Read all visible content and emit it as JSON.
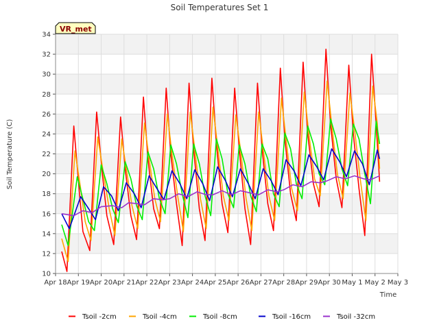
{
  "chart_data": {
    "type": "line",
    "title": "Soil Temperatures Set 1",
    "xlabel": "Time",
    "ylabel": "Soil Temperature (C)",
    "badge": "VR_met",
    "ylim": [
      10,
      34
    ],
    "xlim": [
      0,
      15
    ],
    "yticks": [
      10,
      12,
      14,
      16,
      18,
      20,
      22,
      24,
      26,
      28,
      30,
      32,
      34
    ],
    "xticks": [
      {
        "x": 0,
        "label": "Apr 18"
      },
      {
        "x": 1,
        "label": "Apr 19"
      },
      {
        "x": 2,
        "label": "Apr 20"
      },
      {
        "x": 3,
        "label": "Apr 21"
      },
      {
        "x": 4,
        "label": "Apr 22"
      },
      {
        "x": 5,
        "label": "Apr 23"
      },
      {
        "x": 6,
        "label": "Apr 24"
      },
      {
        "x": 7,
        "label": "Apr 25"
      },
      {
        "x": 8,
        "label": "Apr 26"
      },
      {
        "x": 9,
        "label": "Apr 27"
      },
      {
        "x": 10,
        "label": "Apr 28"
      },
      {
        "x": 11,
        "label": "Apr 29"
      },
      {
        "x": 12,
        "label": "Apr 30"
      },
      {
        "x": 13,
        "label": "May 1"
      },
      {
        "x": 14,
        "label": "May 2"
      },
      {
        "x": 15,
        "label": "May 3"
      }
    ],
    "grid": true,
    "legend_position": "bottom",
    "series": [
      {
        "name": "Tsoil -2cm",
        "color": "#ff0000",
        "points": [
          [
            0.27,
            12.2
          ],
          [
            0.5,
            10.2
          ],
          [
            0.8,
            24.8
          ],
          [
            1.05,
            18.0
          ],
          [
            1.2,
            14.2
          ],
          [
            1.5,
            12.3
          ],
          [
            1.8,
            26.2
          ],
          [
            2.05,
            20.0
          ],
          [
            2.25,
            15.8
          ],
          [
            2.55,
            12.9
          ],
          [
            2.85,
            25.7
          ],
          [
            3.05,
            20.5
          ],
          [
            3.3,
            15.8
          ],
          [
            3.55,
            13.4
          ],
          [
            3.85,
            27.7
          ],
          [
            4.05,
            21.5
          ],
          [
            4.3,
            16.5
          ],
          [
            4.55,
            14.5
          ],
          [
            4.85,
            28.6
          ],
          [
            5.05,
            22.0
          ],
          [
            5.3,
            17.0
          ],
          [
            5.55,
            12.8
          ],
          [
            5.85,
            29.1
          ],
          [
            6.05,
            22.5
          ],
          [
            6.3,
            16.5
          ],
          [
            6.55,
            13.3
          ],
          [
            6.85,
            29.6
          ],
          [
            7.05,
            23.0
          ],
          [
            7.3,
            17.0
          ],
          [
            7.55,
            14.1
          ],
          [
            7.85,
            28.6
          ],
          [
            8.05,
            22.5
          ],
          [
            8.3,
            16.5
          ],
          [
            8.55,
            12.9
          ],
          [
            8.85,
            29.1
          ],
          [
            9.05,
            22.5
          ],
          [
            9.3,
            17.0
          ],
          [
            9.55,
            14.3
          ],
          [
            9.85,
            30.6
          ],
          [
            10.05,
            23.5
          ],
          [
            10.3,
            18.0
          ],
          [
            10.55,
            15.3
          ],
          [
            10.85,
            31.2
          ],
          [
            11.05,
            24.0
          ],
          [
            11.3,
            19.0
          ],
          [
            11.55,
            16.7
          ],
          [
            11.85,
            32.5
          ],
          [
            12.05,
            25.0
          ],
          [
            12.3,
            19.5
          ],
          [
            12.55,
            16.6
          ],
          [
            12.85,
            30.9
          ],
          [
            13.05,
            24.0
          ],
          [
            13.3,
            18.5
          ],
          [
            13.55,
            13.8
          ],
          [
            13.85,
            32.0
          ],
          [
            14.05,
            25.0
          ],
          [
            14.2,
            19.2
          ]
        ]
      },
      {
        "name": "Tsoil -4cm",
        "color": "#ffa500",
        "points": [
          [
            0.27,
            13.5
          ],
          [
            0.55,
            11.2
          ],
          [
            0.85,
            22.3
          ],
          [
            1.1,
            18.5
          ],
          [
            1.3,
            15.2
          ],
          [
            1.55,
            13.3
          ],
          [
            1.85,
            23.7
          ],
          [
            2.1,
            20.0
          ],
          [
            2.35,
            16.5
          ],
          [
            2.6,
            13.8
          ],
          [
            2.9,
            23.5
          ],
          [
            3.1,
            20.5
          ],
          [
            3.35,
            16.8
          ],
          [
            3.6,
            14.5
          ],
          [
            3.9,
            25.1
          ],
          [
            4.1,
            21.5
          ],
          [
            4.35,
            17.5
          ],
          [
            4.6,
            15.2
          ],
          [
            4.9,
            26.0
          ],
          [
            5.1,
            22.0
          ],
          [
            5.35,
            17.8
          ],
          [
            5.6,
            14.2
          ],
          [
            5.9,
            26.2
          ],
          [
            6.1,
            22.5
          ],
          [
            6.35,
            17.5
          ],
          [
            6.6,
            14.5
          ],
          [
            6.9,
            26.7
          ],
          [
            7.1,
            22.8
          ],
          [
            7.35,
            17.8
          ],
          [
            7.6,
            15.3
          ],
          [
            7.9,
            25.9
          ],
          [
            8.1,
            22.5
          ],
          [
            8.35,
            17.5
          ],
          [
            8.6,
            14.3
          ],
          [
            8.9,
            26.2
          ],
          [
            9.1,
            22.5
          ],
          [
            9.35,
            17.8
          ],
          [
            9.6,
            15.3
          ],
          [
            9.9,
            27.6
          ],
          [
            10.1,
            23.5
          ],
          [
            10.35,
            18.5
          ],
          [
            10.6,
            16.3
          ],
          [
            10.9,
            28.2
          ],
          [
            11.1,
            24.0
          ],
          [
            11.35,
            19.5
          ],
          [
            11.6,
            17.8
          ],
          [
            11.9,
            29.3
          ],
          [
            12.1,
            25.0
          ],
          [
            12.35,
            20.0
          ],
          [
            12.6,
            17.5
          ],
          [
            12.9,
            28.1
          ],
          [
            13.1,
            24.5
          ],
          [
            13.35,
            19.5
          ],
          [
            13.6,
            15.3
          ],
          [
            13.9,
            28.8
          ],
          [
            14.1,
            25.0
          ],
          [
            14.2,
            20.5
          ]
        ]
      },
      {
        "name": "Tsoil -8cm",
        "color": "#00ee00",
        "points": [
          [
            0.27,
            14.9
          ],
          [
            0.55,
            12.8
          ],
          [
            0.95,
            19.7
          ],
          [
            1.25,
            17.0
          ],
          [
            1.45,
            15.2
          ],
          [
            1.7,
            14.3
          ],
          [
            2.0,
            20.9
          ],
          [
            2.25,
            19.0
          ],
          [
            2.5,
            16.5
          ],
          [
            2.75,
            15.1
          ],
          [
            3.05,
            21.2
          ],
          [
            3.3,
            19.5
          ],
          [
            3.55,
            16.8
          ],
          [
            3.8,
            15.4
          ],
          [
            4.05,
            22.2
          ],
          [
            4.3,
            20.5
          ],
          [
            4.55,
            17.5
          ],
          [
            4.8,
            16.0
          ],
          [
            5.05,
            22.9
          ],
          [
            5.3,
            21.0
          ],
          [
            5.55,
            18.0
          ],
          [
            5.8,
            15.6
          ],
          [
            6.05,
            23.0
          ],
          [
            6.3,
            21.0
          ],
          [
            6.55,
            17.8
          ],
          [
            6.8,
            15.8
          ],
          [
            7.05,
            23.5
          ],
          [
            7.3,
            21.5
          ],
          [
            7.55,
            18.0
          ],
          [
            7.8,
            16.6
          ],
          [
            8.05,
            22.9
          ],
          [
            8.3,
            21.0
          ],
          [
            8.55,
            17.8
          ],
          [
            8.8,
            16.2
          ],
          [
            9.05,
            23.0
          ],
          [
            9.3,
            21.5
          ],
          [
            9.55,
            18.0
          ],
          [
            9.8,
            16.7
          ],
          [
            10.05,
            24.1
          ],
          [
            10.3,
            22.5
          ],
          [
            10.55,
            19.0
          ],
          [
            10.8,
            17.5
          ],
          [
            11.05,
            24.8
          ],
          [
            11.3,
            23.0
          ],
          [
            11.55,
            20.0
          ],
          [
            11.8,
            18.9
          ],
          [
            12.05,
            25.5
          ],
          [
            12.3,
            23.5
          ],
          [
            12.55,
            20.5
          ],
          [
            12.8,
            18.8
          ],
          [
            13.05,
            25.0
          ],
          [
            13.3,
            23.5
          ],
          [
            13.55,
            20.0
          ],
          [
            13.8,
            17.0
          ],
          [
            14.05,
            25.3
          ],
          [
            14.2,
            23.0
          ]
        ]
      },
      {
        "name": "Tsoil -16cm",
        "color": "#0000cc",
        "points": [
          [
            0.27,
            16.0
          ],
          [
            0.6,
            14.5
          ],
          [
            1.1,
            17.7
          ],
          [
            1.45,
            16.5
          ],
          [
            1.75,
            15.4
          ],
          [
            2.1,
            18.7
          ],
          [
            2.45,
            17.8
          ],
          [
            2.75,
            16.3
          ],
          [
            3.1,
            19.1
          ],
          [
            3.45,
            18.0
          ],
          [
            3.75,
            16.6
          ],
          [
            4.1,
            19.8
          ],
          [
            4.45,
            18.5
          ],
          [
            4.75,
            17.4
          ],
          [
            5.1,
            20.3
          ],
          [
            5.45,
            19.0
          ],
          [
            5.75,
            17.5
          ],
          [
            6.1,
            20.4
          ],
          [
            6.45,
            19.0
          ],
          [
            6.75,
            17.3
          ],
          [
            7.1,
            20.7
          ],
          [
            7.45,
            19.3
          ],
          [
            7.75,
            17.7
          ],
          [
            8.1,
            20.5
          ],
          [
            8.45,
            19.0
          ],
          [
            8.75,
            17.5
          ],
          [
            9.1,
            20.5
          ],
          [
            9.45,
            19.3
          ],
          [
            9.75,
            17.9
          ],
          [
            10.1,
            21.4
          ],
          [
            10.45,
            20.3
          ],
          [
            10.75,
            18.8
          ],
          [
            11.1,
            21.9
          ],
          [
            11.45,
            20.7
          ],
          [
            11.75,
            19.4
          ],
          [
            12.1,
            22.5
          ],
          [
            12.45,
            21.2
          ],
          [
            12.75,
            19.7
          ],
          [
            13.1,
            22.3
          ],
          [
            13.45,
            21.0
          ],
          [
            13.75,
            18.9
          ],
          [
            14.1,
            22.4
          ],
          [
            14.2,
            21.5
          ]
        ]
      },
      {
        "name": "Tsoil -32cm",
        "color": "#9932cc",
        "points": [
          [
            0.27,
            16.0
          ],
          [
            0.8,
            15.8
          ],
          [
            1.2,
            16.3
          ],
          [
            1.6,
            16.1
          ],
          [
            2.0,
            16.7
          ],
          [
            2.5,
            16.8
          ],
          [
            2.9,
            16.6
          ],
          [
            3.2,
            17.1
          ],
          [
            3.6,
            17.0
          ],
          [
            3.9,
            16.9
          ],
          [
            4.3,
            17.5
          ],
          [
            4.7,
            17.4
          ],
          [
            5.0,
            17.5
          ],
          [
            5.4,
            18.0
          ],
          [
            5.8,
            17.7
          ],
          [
            6.2,
            18.2
          ],
          [
            6.6,
            17.9
          ],
          [
            6.9,
            17.9
          ],
          [
            7.3,
            18.3
          ],
          [
            7.7,
            17.9
          ],
          [
            8.1,
            18.3
          ],
          [
            8.5,
            18.1
          ],
          [
            8.9,
            17.9
          ],
          [
            9.3,
            18.4
          ],
          [
            9.7,
            18.2
          ],
          [
            10.0,
            18.4
          ],
          [
            10.4,
            18.9
          ],
          [
            10.8,
            18.7
          ],
          [
            11.2,
            19.2
          ],
          [
            11.6,
            19.1
          ],
          [
            11.9,
            19.3
          ],
          [
            12.3,
            19.7
          ],
          [
            12.7,
            19.5
          ],
          [
            13.1,
            19.8
          ],
          [
            13.5,
            19.5
          ],
          [
            13.8,
            19.4
          ],
          [
            14.2,
            19.8
          ]
        ]
      }
    ]
  }
}
